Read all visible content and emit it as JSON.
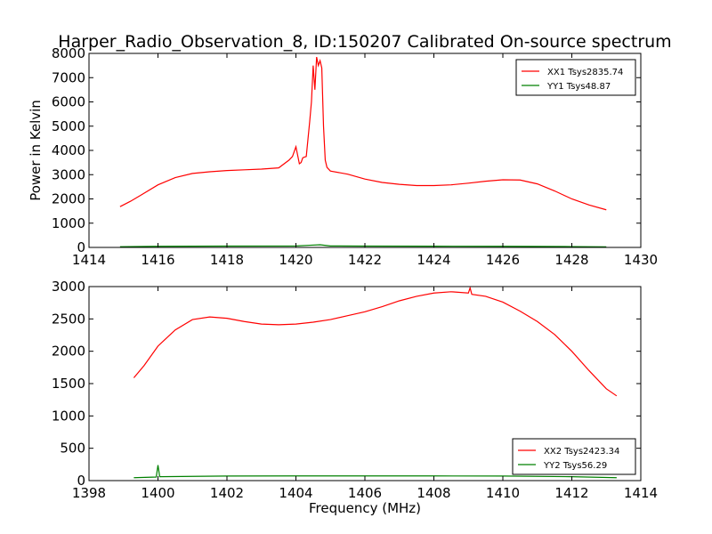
{
  "title": "Harper_Radio_Observation_8, ID:150207 Calibrated On-source spectrum",
  "ylabel": "Power in Kelvin",
  "xlabel": "Frequency (MHz)",
  "colors": {
    "xx": "#ff0000",
    "yy": "#008000",
    "axis": "#000000",
    "background": "#ffffff"
  },
  "chart_data": [
    {
      "type": "line",
      "xlim": [
        1414,
        1430
      ],
      "ylim": [
        0,
        8000
      ],
      "xticks": [
        1414,
        1416,
        1418,
        1420,
        1422,
        1424,
        1426,
        1428,
        1430
      ],
      "yticks": [
        0,
        1000,
        2000,
        3000,
        4000,
        5000,
        6000,
        7000,
        8000
      ],
      "grid": false,
      "legend_position": "top-right",
      "series": [
        {
          "name": "XX1 Tsys2835.74",
          "color": "#ff0000",
          "x": [
            1414.9,
            1415.2,
            1415.5,
            1416.0,
            1416.5,
            1417.0,
            1417.5,
            1418.0,
            1418.5,
            1419.0,
            1419.5,
            1419.8,
            1419.9,
            1420.0,
            1420.1,
            1420.15,
            1420.2,
            1420.3,
            1420.4,
            1420.45,
            1420.5,
            1420.55,
            1420.6,
            1420.65,
            1420.7,
            1420.75,
            1420.8,
            1420.85,
            1420.9,
            1421.0,
            1421.5,
            1422.0,
            1422.5,
            1423.0,
            1423.5,
            1424.0,
            1424.5,
            1425.0,
            1425.5,
            1426.0,
            1426.5,
            1427.0,
            1427.5,
            1428.0,
            1428.5,
            1429.0
          ],
          "values": [
            1680,
            1900,
            2150,
            2580,
            2880,
            3050,
            3120,
            3170,
            3200,
            3230,
            3280,
            3600,
            3750,
            4150,
            3450,
            3500,
            3700,
            3750,
            5200,
            6000,
            7500,
            6500,
            7850,
            7500,
            7700,
            7400,
            5000,
            3600,
            3300,
            3150,
            3020,
            2820,
            2680,
            2600,
            2550,
            2550,
            2580,
            2650,
            2730,
            2790,
            2780,
            2620,
            2330,
            2000,
            1750,
            1550
          ]
        },
        {
          "name": "YY1 Tsys48.87",
          "color": "#008000",
          "x": [
            1414.9,
            1416.0,
            1418.0,
            1420.0,
            1420.4,
            1420.7,
            1421.0,
            1422.0,
            1424.0,
            1426.0,
            1428.0,
            1429.0
          ],
          "values": [
            30,
            45,
            55,
            60,
            90,
            110,
            60,
            55,
            50,
            45,
            35,
            25
          ]
        }
      ]
    },
    {
      "type": "line",
      "xlim": [
        1398,
        1414
      ],
      "ylim": [
        0,
        3000
      ],
      "xticks": [
        1398,
        1400,
        1402,
        1404,
        1406,
        1408,
        1410,
        1412,
        1414
      ],
      "yticks": [
        0,
        500,
        1000,
        1500,
        2000,
        2500,
        3000
      ],
      "grid": false,
      "legend_position": "bottom-right",
      "series": [
        {
          "name": "XX2 Tsys2423.34",
          "color": "#ff0000",
          "x": [
            1399.3,
            1399.6,
            1400.0,
            1400.5,
            1401.0,
            1401.5,
            1402.0,
            1402.5,
            1403.0,
            1403.5,
            1404.0,
            1404.5,
            1405.0,
            1405.5,
            1406.0,
            1406.5,
            1407.0,
            1407.5,
            1408.0,
            1408.5,
            1409.0,
            1409.05,
            1409.1,
            1409.5,
            1410.0,
            1410.5,
            1411.0,
            1411.5,
            1412.0,
            1412.5,
            1413.0,
            1413.3
          ],
          "values": [
            1590,
            1780,
            2080,
            2330,
            2490,
            2530,
            2510,
            2460,
            2420,
            2410,
            2420,
            2450,
            2490,
            2550,
            2610,
            2690,
            2780,
            2850,
            2900,
            2920,
            2900,
            2980,
            2880,
            2850,
            2760,
            2620,
            2460,
            2260,
            2000,
            1700,
            1420,
            1310
          ]
        },
        {
          "name": "YY2 Tsys56.29",
          "color": "#008000",
          "x": [
            1399.3,
            1399.95,
            1400.0,
            1400.05,
            1401.0,
            1402.0,
            1404.0,
            1406.0,
            1408.0,
            1410.0,
            1412.0,
            1413.3
          ],
          "values": [
            45,
            55,
            240,
            60,
            65,
            70,
            72,
            72,
            72,
            70,
            60,
            45
          ]
        }
      ]
    }
  ]
}
